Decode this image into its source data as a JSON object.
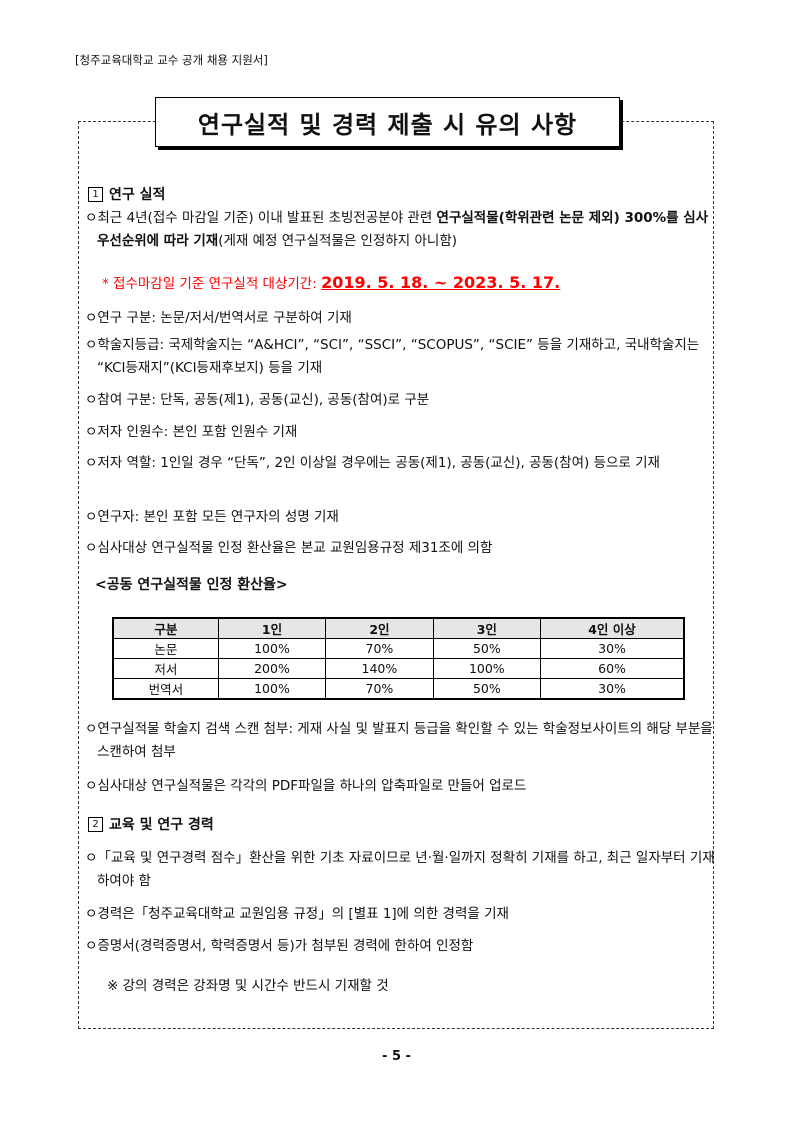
{
  "header": "[청주교육대학교 교수 공개 채용 지원서]",
  "title": "연구실적 및 경력 제출 시 유의 사항",
  "section1": {
    "num": "1",
    "title": "연구 실적"
  },
  "item1": {
    "pre": "ㅇ최근 4년(접수 마감일 기준) 이내 발표된 초빙전공분야 관련 ",
    "bold": "연구실적물(학위관련 논문 제외) 300%를 심사 우선순위에 따라 기재",
    "post": "(게재 예정 연구실적물은 인정하지 아니함)"
  },
  "notice": {
    "label": "* 접수마감일 기준 연구실적 대상기간: ",
    "period": "2019. 5. 18. ~ 2023. 5. 17."
  },
  "items1": [
    "ㅇ연구 구분: 논문/저서/번역서로 구분하여 기재",
    "ㅇ학술지등급: 국제학술지는 “A&HCI”, “SCI”, “SSCI”, “SCOPUS”, “SCIE” 등을 기재하고, 국내학술지는 “KCI등재지”(KCI등재후보지) 등을 기재",
    "ㅇ참여 구분: 단독, 공동(제1), 공동(교신), 공동(참여)로 구분",
    "ㅇ저자 인원수: 본인 포함 인원수 기재",
    "ㅇ저자 역할: 1인일 경우 “단독”, 2인 이상일 경우에는 공동(제1), 공동(교신), 공동(참여) 등으로 기재",
    "ㅇ연구자: 본인 포함 모든 연구자의 성명 기재",
    "ㅇ심사대상 연구실적물 인정 환산율은 본교 교원임용규정 제31조에 의함"
  ],
  "table": {
    "caption": "<공동 연구실적물 인정 환산율>",
    "headers": [
      "구분",
      "1인",
      "2인",
      "3인",
      "4인 이상"
    ],
    "rows": [
      [
        "논문",
        "100%",
        "70%",
        "50%",
        "30%"
      ],
      [
        "저서",
        "200%",
        "140%",
        "100%",
        "60%"
      ],
      [
        "번역서",
        "100%",
        "70%",
        "50%",
        "30%"
      ]
    ]
  },
  "items2": [
    "ㅇ연구실적물 학술지 검색 스캔 첨부: 게재 사실 및 발표지 등급을 확인할 수 있는 학술정보사이트의 해당 부분을 스캔하여 첨부",
    "ㅇ심사대상 연구실적물은 각각의 PDF파일을 하나의 압축파일로 만들어 업로드"
  ],
  "section2": {
    "num": "2",
    "title": "교육 및 연구 경력"
  },
  "items3": [
    "ㅇ「교육 및 연구경력 점수」환산을 위한 기초 자료이므로 년·월·일까지 정확히 기재를 하고, 최근 일자부터 기재하여야 함",
    "ㅇ경력은「청주교육대학교 교원임용 규정」의 [별표 1]에 의한 경력을 기재",
    "ㅇ증명서(경력증명서, 학력증명서 등)가 첨부된 경력에 한하여 인정함"
  ],
  "note": "※ 강의 경력은 강좌명 및 시간수 반드시 기재할 것",
  "page_number": "- 5 -"
}
